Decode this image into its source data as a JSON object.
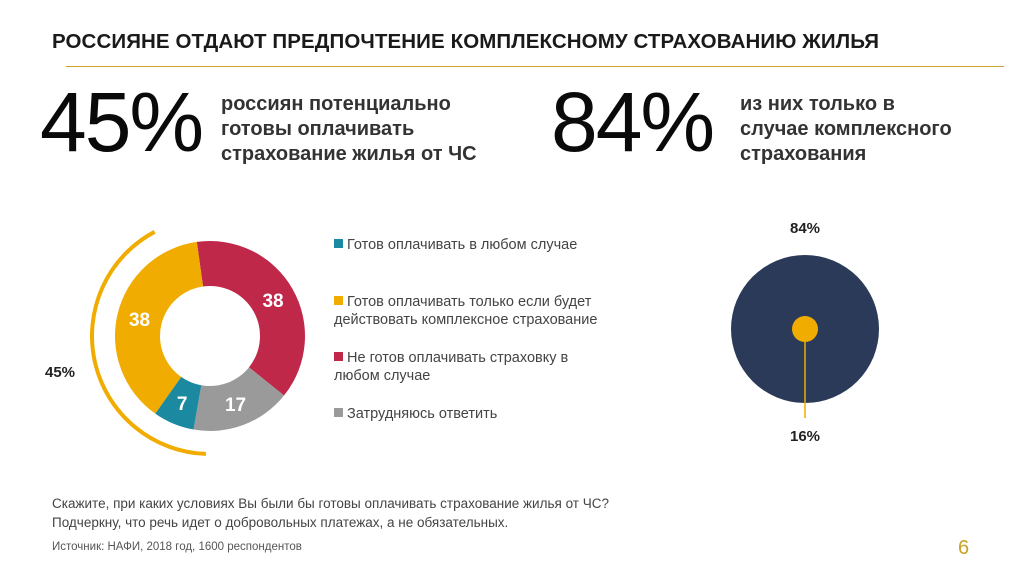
{
  "title": "РОССИЯНЕ ОТДАЮТ ПРЕДПОЧТЕНИЕ КОМПЛЕКСНОМУ СТРАХОВАНИЮ ЖИЛЬЯ",
  "stats": [
    {
      "value": "45%",
      "text_lines": [
        "россиян  потенциально",
        "готовы  оплачивать",
        "страхование жилья от ЧС"
      ]
    },
    {
      "value": "84%",
      "text_lines": [
        "из них только в",
        "случае комплексного",
        "страхования"
      ]
    }
  ],
  "colors": {
    "teal": "#1b8aa0",
    "gold": "#f0ac00",
    "crimson": "#c0284a",
    "gray": "#9a9a9a",
    "navy": "#2b3a58",
    "accent_line": "#c9a227"
  },
  "chart_data": [
    {
      "type": "pie",
      "variant": "donut",
      "categories": [
        "Готов оплачивать в любом случае",
        "Готов оплачивать только если будет действовать комплексное страхование",
        "Не готов оплачивать страховку в любом случае",
        "Затрудняюсь ответить"
      ],
      "values": [
        7,
        38,
        38,
        17
      ],
      "value_labels": [
        "7",
        "38",
        "38",
        "17"
      ],
      "colors": [
        "#1b8aa0",
        "#f0ac00",
        "#c0284a",
        "#9a9a9a"
      ],
      "bracket_label": "45%",
      "legend_position": "right"
    },
    {
      "type": "pie",
      "values": [
        84,
        16
      ],
      "value_labels": [
        "84%",
        "16%"
      ],
      "colors": [
        "#2b3a58",
        "#f0ac00"
      ]
    }
  ],
  "footnote": [
    "Скажите, при каких условиях Вы были бы готовы оплачивать страхование жилья от ЧС?",
    "Подчеркну, что речь идет о добровольных платежах, а не обязательных."
  ],
  "source": "Источник: НАФИ, 2018 год, 1600 респондентов",
  "page_number": "6"
}
